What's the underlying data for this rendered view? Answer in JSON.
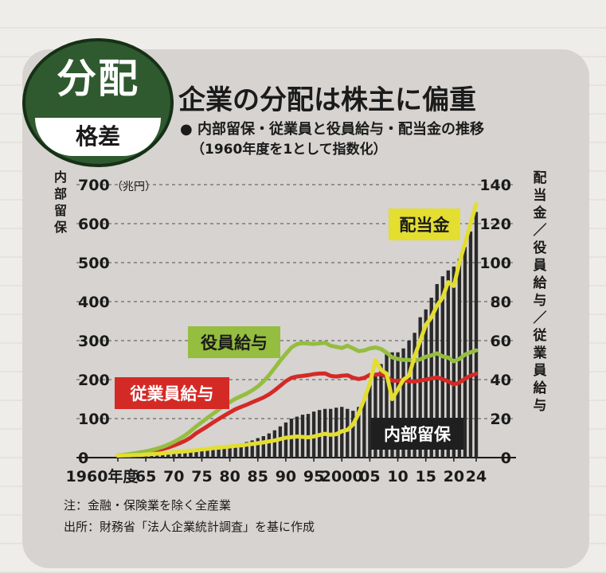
{
  "badge": {
    "main": "分配",
    "sub": "格差"
  },
  "header": {
    "title": "企業の分配は株主に偏重",
    "subtitle": "● 内部留保・従業員と役員給与・配当金の推移",
    "subtitle_note": "（1960年度を1として指数化）"
  },
  "notes": {
    "note1": "注：金融・保険業を除く全産業",
    "source": "出所：財務省「法人企業統計調査」を基に作成"
  },
  "chart_data": {
    "type": "bar+line",
    "title": "企業の分配は株主に偏重",
    "left_axis": {
      "label": "内部留保",
      "unit": "（兆円）",
      "ylim": [
        0,
        700
      ],
      "ticks": [
        0,
        100,
        200,
        300,
        400,
        500,
        600,
        700
      ]
    },
    "right_axis": {
      "label": "配当金／役員給与／従業員給与",
      "ylim": [
        0,
        140
      ],
      "ticks": [
        0,
        20,
        40,
        60,
        80,
        100,
        120,
        140
      ]
    },
    "x_ticks": [
      {
        "year": 1960,
        "label": "1960年度"
      },
      {
        "year": 1965,
        "label": "65"
      },
      {
        "year": 1970,
        "label": "70"
      },
      {
        "year": 1975,
        "label": "75"
      },
      {
        "year": 1980,
        "label": "80"
      },
      {
        "year": 1985,
        "label": "85"
      },
      {
        "year": 1990,
        "label": "90"
      },
      {
        "year": 1995,
        "label": "95"
      },
      {
        "year": 2000,
        "label": "2000"
      },
      {
        "year": 2005,
        "label": "05"
      },
      {
        "year": 2010,
        "label": "10"
      },
      {
        "year": 2015,
        "label": "15"
      },
      {
        "year": 2020,
        "label": "20"
      },
      {
        "year": 2024,
        "label": "24"
      }
    ],
    "years": [
      1960,
      1961,
      1962,
      1963,
      1964,
      1965,
      1966,
      1967,
      1968,
      1969,
      1970,
      1971,
      1972,
      1973,
      1974,
      1975,
      1976,
      1977,
      1978,
      1979,
      1980,
      1981,
      1982,
      1983,
      1984,
      1985,
      1986,
      1987,
      1988,
      1989,
      1990,
      1991,
      1992,
      1993,
      1994,
      1995,
      1996,
      1997,
      1998,
      1999,
      2000,
      2001,
      2002,
      2003,
      2004,
      2005,
      2006,
      2007,
      2008,
      2009,
      2010,
      2011,
      2012,
      2013,
      2014,
      2015,
      2016,
      2017,
      2018,
      2019,
      2020,
      2021,
      2022,
      2023,
      2024
    ],
    "series": [
      {
        "name": "内部留保",
        "kind": "bar",
        "axis": "left",
        "color": "#2a2a2a",
        "values": [
          2,
          2,
          3,
          3,
          4,
          4,
          5,
          6,
          7,
          8,
          10,
          11,
          13,
          15,
          17,
          18,
          20,
          22,
          24,
          26,
          30,
          33,
          36,
          40,
          44,
          50,
          55,
          62,
          70,
          80,
          90,
          100,
          105,
          110,
          112,
          118,
          122,
          125,
          125,
          128,
          130,
          125,
          120,
          130,
          150,
          190,
          210,
          240,
          265,
          270,
          270,
          280,
          300,
          320,
          360,
          380,
          410,
          445,
          465,
          480,
          490,
          510,
          540,
          580,
          630
        ]
      },
      {
        "name": "従業員給与",
        "kind": "line",
        "axis": "right",
        "color": "#d42a26",
        "values": [
          1,
          1.3,
          1.6,
          1.9,
          2.2,
          2.6,
          3.1,
          3.7,
          4.4,
          5.2,
          6.2,
          7.3,
          8.6,
          10.3,
          12.5,
          14.3,
          16.1,
          18,
          19.8,
          21.5,
          23.2,
          24.8,
          26,
          27.1,
          28.4,
          29.6,
          30.8,
          32.4,
          34.5,
          36.8,
          39.2,
          40.9,
          41.6,
          41.9,
          42.3,
          42.8,
          43.1,
          43.2,
          41.9,
          41.6,
          42,
          42.2,
          41,
          40.3,
          40.9,
          42.4,
          42.5,
          42.9,
          41.3,
          39.5,
          39.4,
          39.7,
          39.2,
          39,
          39.5,
          40,
          40.6,
          41.1,
          40.3,
          39.1,
          37.5,
          38.5,
          40.5,
          42,
          43
        ]
      },
      {
        "name": "役員給与",
        "kind": "line",
        "axis": "right",
        "color": "#95bd3f",
        "values": [
          1,
          1.4,
          1.8,
          2.2,
          2.7,
          3.2,
          3.8,
          4.6,
          5.5,
          6.6,
          8,
          9.6,
          11.4,
          13.6,
          16,
          18.2,
          20.4,
          22.5,
          24.6,
          26.7,
          28.5,
          30.2,
          31.5,
          32.8,
          34.5,
          36.5,
          39.1,
          42.2,
          45.9,
          49.7,
          53.2,
          56.5,
          58.2,
          58.7,
          58.5,
          58.3,
          58.6,
          58.9,
          57.4,
          56.8,
          56.2,
          57.4,
          56.1,
          54.6,
          55,
          56,
          56.5,
          55.7,
          53.8,
          51.4,
          50.6,
          50.1,
          50.1,
          49.6,
          50.4,
          51.7,
          52.4,
          53.5,
          51.9,
          51.3,
          49.4,
          50.6,
          52.8,
          54,
          55
        ]
      },
      {
        "name": "配当金",
        "kind": "line",
        "axis": "right",
        "color": "#e3de2f",
        "values": [
          1,
          1.1,
          1.2,
          1.3,
          1.4,
          1.6,
          1.8,
          2,
          2.2,
          2.5,
          2.8,
          3,
          3.2,
          3.5,
          3.8,
          4.2,
          4.5,
          4.8,
          5.1,
          5.4,
          5.7,
          6,
          6.3,
          6.6,
          7,
          7.4,
          7.8,
          8.3,
          8.8,
          9.5,
          10.2,
          10.5,
          10.8,
          10.6,
          10.4,
          10.8,
          11.6,
          12.2,
          11.7,
          12,
          13.5,
          14.2,
          17,
          22.5,
          30,
          38,
          50,
          45,
          43,
          30,
          35,
          40,
          42,
          52,
          60,
          68,
          72,
          78,
          82,
          90,
          88,
          100,
          110,
          120,
          130
        ]
      }
    ],
    "annotations": [
      "配当金",
      "役員給与",
      "従業員給与",
      "内部留保"
    ]
  }
}
